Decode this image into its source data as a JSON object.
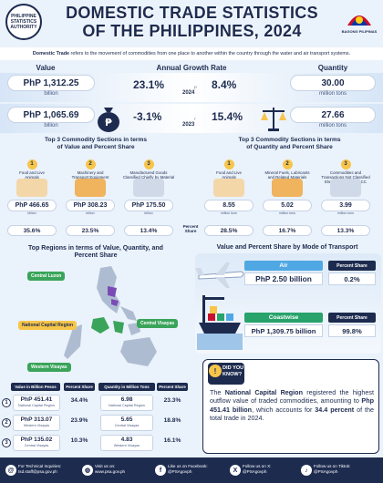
{
  "header": {
    "title_line1": "DOMESTIC TRADE STATISTICS",
    "title_line2": "OF THE PHILIPPINES, 2024",
    "logo_left_text": "PHILIPPINE STATISTICS AUTHORITY",
    "logo_right_text": "BAGONG PILIPINAS"
  },
  "definition": {
    "term": "Domestic Trade",
    "text": " refers to the movement of commodities from one place to another within the country through the water and air transport systems."
  },
  "summary": {
    "value_head": "Value",
    "rate_head": "Annual Growth Rate",
    "quantity_head": "Quantity",
    "rows": [
      {
        "value": "PhP 1,312.25",
        "value_unit": "billion",
        "value_rate": "23.1%",
        "year": "2024",
        "year_mark": "p",
        "quantity_rate": "8.4%",
        "quantity": "30.00",
        "quantity_unit": "million tons"
      },
      {
        "value": "PhP 1,065.69",
        "value_unit": "billion",
        "value_rate": "-3.1%",
        "year": "2023",
        "year_mark": "r",
        "quantity_rate": "15.4%",
        "quantity": "27.66",
        "quantity_unit": "million tons"
      }
    ]
  },
  "top3_value": {
    "title_l1": "Top 3 Commodity Sections in terms",
    "title_l2": "of Value and Percent Share",
    "items": [
      {
        "num": "1",
        "label_l1": "Food and Live",
        "label_l2": "Animals",
        "label_l3": "",
        "value": "PhP 466.65",
        "unit": "billion",
        "share": "35.6%"
      },
      {
        "num": "2",
        "label_l1": "Machinery and",
        "label_l2": "Transport Equipment",
        "label_l3": "",
        "value": "PhP 308.23",
        "unit": "billion",
        "share": "23.5%"
      },
      {
        "num": "3",
        "label_l1": "Manufactured Goods",
        "label_l2": "Classified Chiefly by Material",
        "label_l3": "",
        "value": "PhP 175.50",
        "unit": "billion",
        "share": "13.4%"
      }
    ]
  },
  "top3_quantity": {
    "title_l1": "Top 3 Commodity Sections in terms",
    "title_l2": "of Quantity and Percent Share",
    "share_label_l1": "Percent",
    "share_label_l2": "Share",
    "items": [
      {
        "num": "1",
        "label_l1": "Food and Live",
        "label_l2": "Animals",
        "label_l3": "",
        "value": "8.55",
        "unit": "million tons",
        "share": "28.5%"
      },
      {
        "num": "2",
        "label_l1": "Mineral Fuels, Lubricants",
        "label_l2": "and Related Materials",
        "label_l3": "",
        "value": "5.02",
        "unit": "million tons",
        "share": "16.7%"
      },
      {
        "num": "3",
        "label_l1": "Commodities and",
        "label_l2": "Transactions Not Classified",
        "label_l3": "Elsewhere in the PSCC",
        "value": "3.99",
        "unit": "million tons",
        "share": "13.3%"
      }
    ]
  },
  "regions": {
    "title_l1": "Top Regions in terms of Value, Quantity, and",
    "title_l2": "Percent Share",
    "map_labels": [
      "Central Luzon",
      "National Capital Region",
      "Central Visayas",
      "Western Visayas"
    ],
    "head_value": "Value in Billion Pesos",
    "head_share1": "Percent Share",
    "head_quantity": "Quantity in Million Tons",
    "head_share2": "Percent Share",
    "rows": [
      {
        "num": "1",
        "value": "PhP 451.41",
        "value_region": "National Capital Region",
        "value_share": "34.4%",
        "quantity": "6.98",
        "quantity_region": "National Capital Region",
        "quantity_share": "23.3%"
      },
      {
        "num": "2",
        "value": "PhP 313.07",
        "value_region": "Western Visayas",
        "value_share": "23.9%",
        "quantity": "5.65",
        "quantity_region": "Central Visayas",
        "quantity_share": "18.8%"
      },
      {
        "num": "3",
        "value": "PhP 135.02",
        "value_region": "Central Visayas",
        "value_share": "10.3%",
        "quantity": "4.83",
        "quantity_region": "Western Visayas",
        "quantity_share": "16.1%"
      }
    ]
  },
  "transport": {
    "title": "Value and Percent Share by Mode of Transport",
    "modes": [
      {
        "name": "Air",
        "share_label": "Percent Share",
        "value": "PhP 2.50 billion",
        "share": "0.2%"
      },
      {
        "name": "Coastwise",
        "share_label": "Percent Share",
        "value": "PhP 1,309.75 billion",
        "share": "99.8%"
      }
    ]
  },
  "did_you_know": {
    "badge_l1": "DID YOU",
    "badge_l2": "KNOW?",
    "p1": "The ",
    "b1": "National Capital Region",
    "p2": " registered the highest outflow value of traded commodities, amounting to ",
    "b2": "Php 451.41 billion",
    "p3": ", which accounts for ",
    "b3": "34.4 percent",
    "p4": " of the total trade in 2024."
  },
  "footer": {
    "inquiries_label": "For Technical Inquiries:",
    "inquiries_email": "tsd.staff@psa.gov.ph",
    "visit_label": "Visit us on:",
    "visit_url": "www.psa.gov.ph",
    "fb_label": "Like us on Facebook:",
    "fb_handle": "@PSAgovph",
    "x_label": "Follow us on X:",
    "x_handle": "@PSAgovph",
    "tiktok_label": "Follow us on Tiktok:",
    "tiktok_handle": "@PSAgovph"
  },
  "colors": {
    "navy": "#1d2b4f",
    "accent_yellow": "#f6c54a",
    "air_blue": "#4fa8e3",
    "coastwise_green": "#27a36b",
    "map_region_purple": "#7b4bb5",
    "map_region_green": "#3aa45a"
  }
}
